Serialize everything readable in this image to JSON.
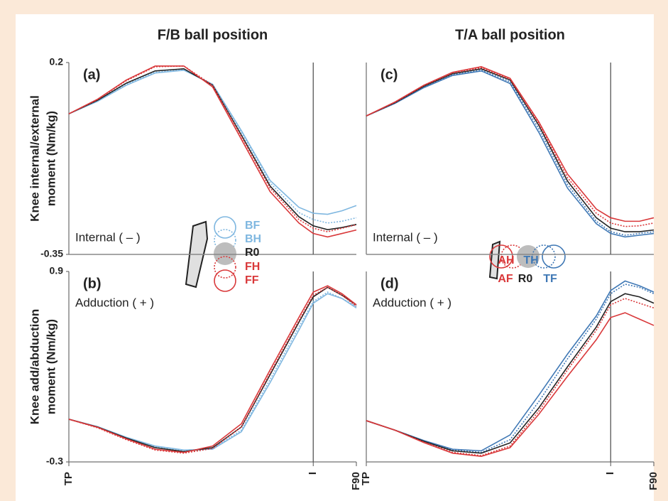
{
  "chart_data": [
    {
      "type": "line",
      "title": "F/B ball position",
      "label": "(a)",
      "annotation": "Internal ( – )",
      "ylabel": [
        "Knee internal/external",
        "moment (Nm/kg)"
      ],
      "x": [
        0,
        10,
        20,
        30,
        40,
        50,
        60,
        70,
        80,
        85,
        90,
        95,
        100
      ],
      "xlim": [
        0,
        100
      ],
      "impact_line": 85,
      "ylim": [
        -0.35,
        0.2
      ],
      "yticks": [
        0.2,
        -0.35
      ],
      "series": [
        {
          "name": "BF",
          "color": "#7fb7e0",
          "dash": "solid",
          "values": [
            0.053,
            0.089,
            0.135,
            0.17,
            0.178,
            0.138,
            0.005,
            -0.138,
            -0.215,
            -0.232,
            -0.235,
            -0.225,
            -0.21
          ]
        },
        {
          "name": "BH",
          "color": "#7fb7e0",
          "dash": "dotted",
          "values": [
            0.053,
            0.09,
            0.138,
            0.172,
            0.18,
            0.137,
            0.0,
            -0.145,
            -0.23,
            -0.25,
            -0.26,
            -0.255,
            -0.245
          ]
        },
        {
          "name": "R0",
          "color": "#222222",
          "dash": "solid",
          "values": [
            0.053,
            0.092,
            0.141,
            0.176,
            0.182,
            0.135,
            -0.008,
            -0.154,
            -0.242,
            -0.268,
            -0.279,
            -0.273,
            -0.264
          ]
        },
        {
          "name": "FH",
          "color": "#d9383a",
          "dash": "dotted",
          "values": [
            0.053,
            0.094,
            0.148,
            0.188,
            0.19,
            0.135,
            -0.012,
            -0.16,
            -0.25,
            -0.275,
            -0.285,
            -0.275,
            -0.265
          ]
        },
        {
          "name": "FF",
          "color": "#d9383a",
          "dash": "solid",
          "values": [
            0.053,
            0.095,
            0.15,
            0.19,
            0.19,
            0.13,
            -0.02,
            -0.17,
            -0.26,
            -0.29,
            -0.3,
            -0.29,
            -0.28
          ]
        }
      ]
    },
    {
      "type": "line",
      "label": "(b)",
      "annotation": "Adduction ( + )",
      "ylabel": [
        "Knee add/abduction",
        "moment (Nm/kg)"
      ],
      "x": [
        0,
        10,
        20,
        30,
        40,
        50,
        60,
        70,
        80,
        85,
        90,
        95,
        100
      ],
      "xlim": [
        0,
        100
      ],
      "xticks": [
        {
          "value": 0,
          "label": "TP"
        },
        {
          "value": 85,
          "label": "I"
        },
        {
          "value": 100,
          "label": "F90"
        }
      ],
      "ylim": [
        -0.3,
        0.9
      ],
      "yticks": [
        0.9,
        -0.3
      ],
      "series": [
        {
          "color": "#7fb7e0",
          "dash": "solid",
          "values": [
            -0.031,
            -0.078,
            -0.145,
            -0.2,
            -0.225,
            -0.22,
            -0.11,
            0.2,
            0.53,
            0.7,
            0.76,
            0.73,
            0.67
          ]
        },
        {
          "color": "#7fb7e0",
          "dash": "dotted",
          "values": [
            -0.031,
            -0.08,
            -0.148,
            -0.205,
            -0.23,
            -0.215,
            -0.1,
            0.22,
            0.55,
            0.71,
            0.77,
            0.73,
            0.68
          ]
        },
        {
          "color": "#222222",
          "dash": "solid",
          "values": [
            -0.031,
            -0.08,
            -0.15,
            -0.21,
            -0.235,
            -0.21,
            -0.08,
            0.25,
            0.58,
            0.74,
            0.8,
            0.75,
            0.69
          ]
        },
        {
          "color": "#d9383a",
          "dash": "dotted",
          "values": [
            -0.031,
            -0.085,
            -0.16,
            -0.225,
            -0.245,
            -0.215,
            -0.08,
            0.26,
            0.59,
            0.75,
            0.8,
            0.75,
            0.68
          ]
        },
        {
          "color": "#d9383a",
          "dash": "solid",
          "values": [
            -0.031,
            -0.082,
            -0.155,
            -0.22,
            -0.24,
            -0.2,
            -0.06,
            0.28,
            0.61,
            0.77,
            0.81,
            0.76,
            0.69
          ]
        }
      ]
    },
    {
      "type": "line",
      "title": "T/A ball position",
      "label": "(c)",
      "annotation": "Internal ( – )",
      "x": [
        0,
        10,
        20,
        30,
        40,
        50,
        60,
        70,
        80,
        85,
        90,
        95,
        100
      ],
      "xlim": [
        0,
        100
      ],
      "impact_line": 85,
      "ylim": [
        -0.35,
        0.2
      ],
      "series": [
        {
          "name": "TF",
          "color": "#3f78b5",
          "dash": "solid",
          "values": [
            0.047,
            0.083,
            0.128,
            0.163,
            0.176,
            0.14,
            0.0,
            -0.16,
            -0.262,
            -0.29,
            -0.3,
            -0.295,
            -0.29
          ]
        },
        {
          "name": "TH",
          "color": "#3f78b5",
          "dash": "dotted",
          "values": [
            0.047,
            0.084,
            0.13,
            0.165,
            0.178,
            0.145,
            0.01,
            -0.15,
            -0.255,
            -0.285,
            -0.295,
            -0.29,
            -0.285
          ]
        },
        {
          "name": "R0",
          "color": "#222222",
          "dash": "solid",
          "values": [
            0.047,
            0.085,
            0.132,
            0.168,
            0.182,
            0.15,
            0.02,
            -0.14,
            -0.245,
            -0.275,
            -0.285,
            -0.285,
            -0.28
          ]
        },
        {
          "name": "AH",
          "color": "#d9383a",
          "dash": "dotted",
          "values": [
            0.047,
            0.086,
            0.134,
            0.17,
            0.185,
            0.152,
            0.025,
            -0.13,
            -0.232,
            -0.26,
            -0.27,
            -0.268,
            -0.26
          ]
        },
        {
          "name": "AF",
          "color": "#d9383a",
          "dash": "solid",
          "values": [
            0.047,
            0.087,
            0.135,
            0.172,
            0.188,
            0.155,
            0.03,
            -0.12,
            -0.22,
            -0.245,
            -0.255,
            -0.255,
            -0.245
          ]
        }
      ]
    },
    {
      "type": "line",
      "label": "(d)",
      "annotation": "Adduction ( + )",
      "x": [
        0,
        10,
        20,
        30,
        40,
        50,
        60,
        70,
        80,
        85,
        90,
        95,
        100
      ],
      "xlim": [
        0,
        100
      ],
      "xticks": [
        {
          "value": 0,
          "label": "TP"
        },
        {
          "value": 85,
          "label": "I"
        },
        {
          "value": 100,
          "label": "F90"
        }
      ],
      "ylim": [
        -0.3,
        0.9
      ],
      "series": [
        {
          "color": "#3f78b5",
          "dash": "solid",
          "values": [
            -0.04,
            -0.1,
            -0.165,
            -0.22,
            -0.23,
            -0.13,
            0.12,
            0.38,
            0.62,
            0.78,
            0.84,
            0.81,
            0.77
          ]
        },
        {
          "color": "#3f78b5",
          "dash": "dotted",
          "values": [
            -0.04,
            -0.1,
            -0.168,
            -0.225,
            -0.24,
            -0.16,
            0.08,
            0.35,
            0.6,
            0.76,
            0.82,
            0.8,
            0.76
          ]
        },
        {
          "color": "#222222",
          "dash": "solid",
          "values": [
            -0.04,
            -0.1,
            -0.17,
            -0.23,
            -0.245,
            -0.18,
            0.04,
            0.3,
            0.55,
            0.71,
            0.76,
            0.74,
            0.7
          ]
        },
        {
          "color": "#d9383a",
          "dash": "dotted",
          "values": [
            -0.04,
            -0.1,
            -0.175,
            -0.24,
            -0.26,
            -0.2,
            0.02,
            0.28,
            0.53,
            0.69,
            0.73,
            0.7,
            0.67
          ]
        },
        {
          "color": "#d9383a",
          "dash": "solid",
          "values": [
            -0.04,
            -0.1,
            -0.178,
            -0.245,
            -0.265,
            -0.21,
            0.0,
            0.24,
            0.47,
            0.61,
            0.64,
            0.6,
            0.56
          ]
        }
      ]
    }
  ]
}
